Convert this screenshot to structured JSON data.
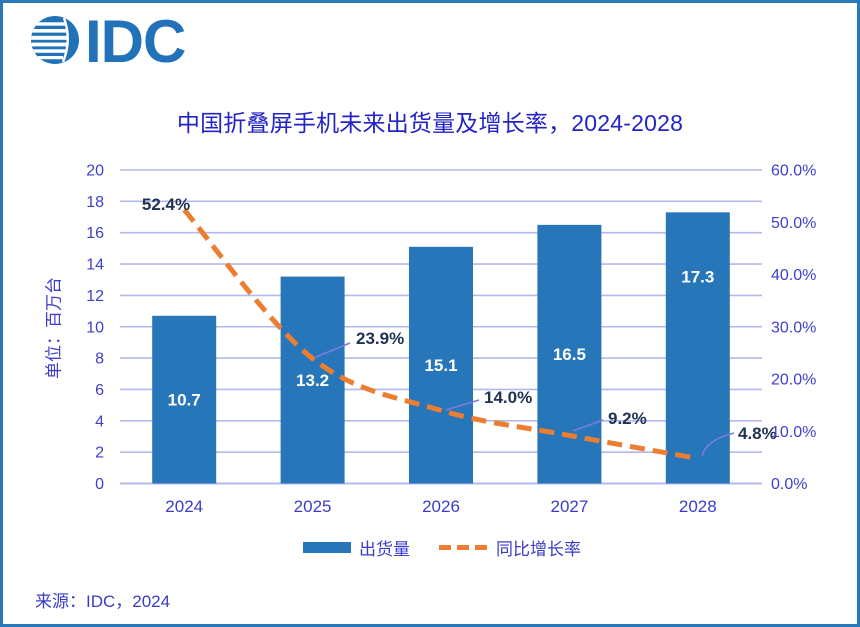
{
  "window": {
    "background": "#FFFFFF",
    "border_color": "#2979B9"
  },
  "logo": {
    "icon": "idc-globe-icon",
    "text": "IDC",
    "color": "#2272B9"
  },
  "title": {
    "text": "中国折叠屏手机未来出货量及增长率，2024-2028",
    "color": "#2323C6"
  },
  "chart_data": {
    "type": "combo",
    "title": "中国折叠屏手机未来出货量及增长率，2024-2028",
    "categories": [
      "2024",
      "2025",
      "2026",
      "2027",
      "2028"
    ],
    "series": [
      {
        "name": "出货量",
        "type": "bar",
        "axis": "left",
        "color": "#2776B9",
        "values": [
          10.7,
          13.2,
          15.1,
          16.5,
          17.3
        ],
        "data_labels": [
          "10.7",
          "13.2",
          "15.1",
          "16.5",
          "17.3"
        ],
        "data_label_color": "#FFFFFF"
      },
      {
        "name": "同比增长率",
        "type": "line",
        "axis": "right",
        "color": "#ED7D31",
        "line_style": "dashed",
        "smoothed": true,
        "values": [
          52.4,
          23.9,
          14.0,
          9.2,
          4.8
        ],
        "data_labels": [
          "52.4%",
          "23.9%",
          "14.0%",
          "9.2%",
          "4.8%"
        ],
        "data_label_color": "#1F3252"
      }
    ],
    "left_axis": {
      "title": "单位：百万台",
      "min": 0,
      "max": 20,
      "step": 2,
      "tick_labels": [
        "0",
        "2",
        "4",
        "6",
        "8",
        "10",
        "12",
        "14",
        "16",
        "18",
        "20"
      ],
      "tick_color": "#4040CC"
    },
    "right_axis": {
      "min": 0,
      "max": 60,
      "step": 10,
      "tick_labels": [
        "0.0%",
        "10.0%",
        "20.0%",
        "30.0%",
        "40.0%",
        "50.0%",
        "60.0%"
      ],
      "tick_color": "#4040CC"
    },
    "x_axis": {
      "tick_labels": [
        "2024",
        "2025",
        "2026",
        "2027",
        "2028"
      ],
      "tick_color": "#3C3CC8"
    },
    "grid": true,
    "gridline_color": "#B4B8EC",
    "legend_position": "bottom",
    "legend_entries": [
      "出货量",
      "同比增长率"
    ]
  },
  "legend": {
    "items": [
      {
        "label": "出货量"
      },
      {
        "label": "同比增长率"
      }
    ]
  },
  "source": {
    "text": "来源：IDC，2024"
  }
}
